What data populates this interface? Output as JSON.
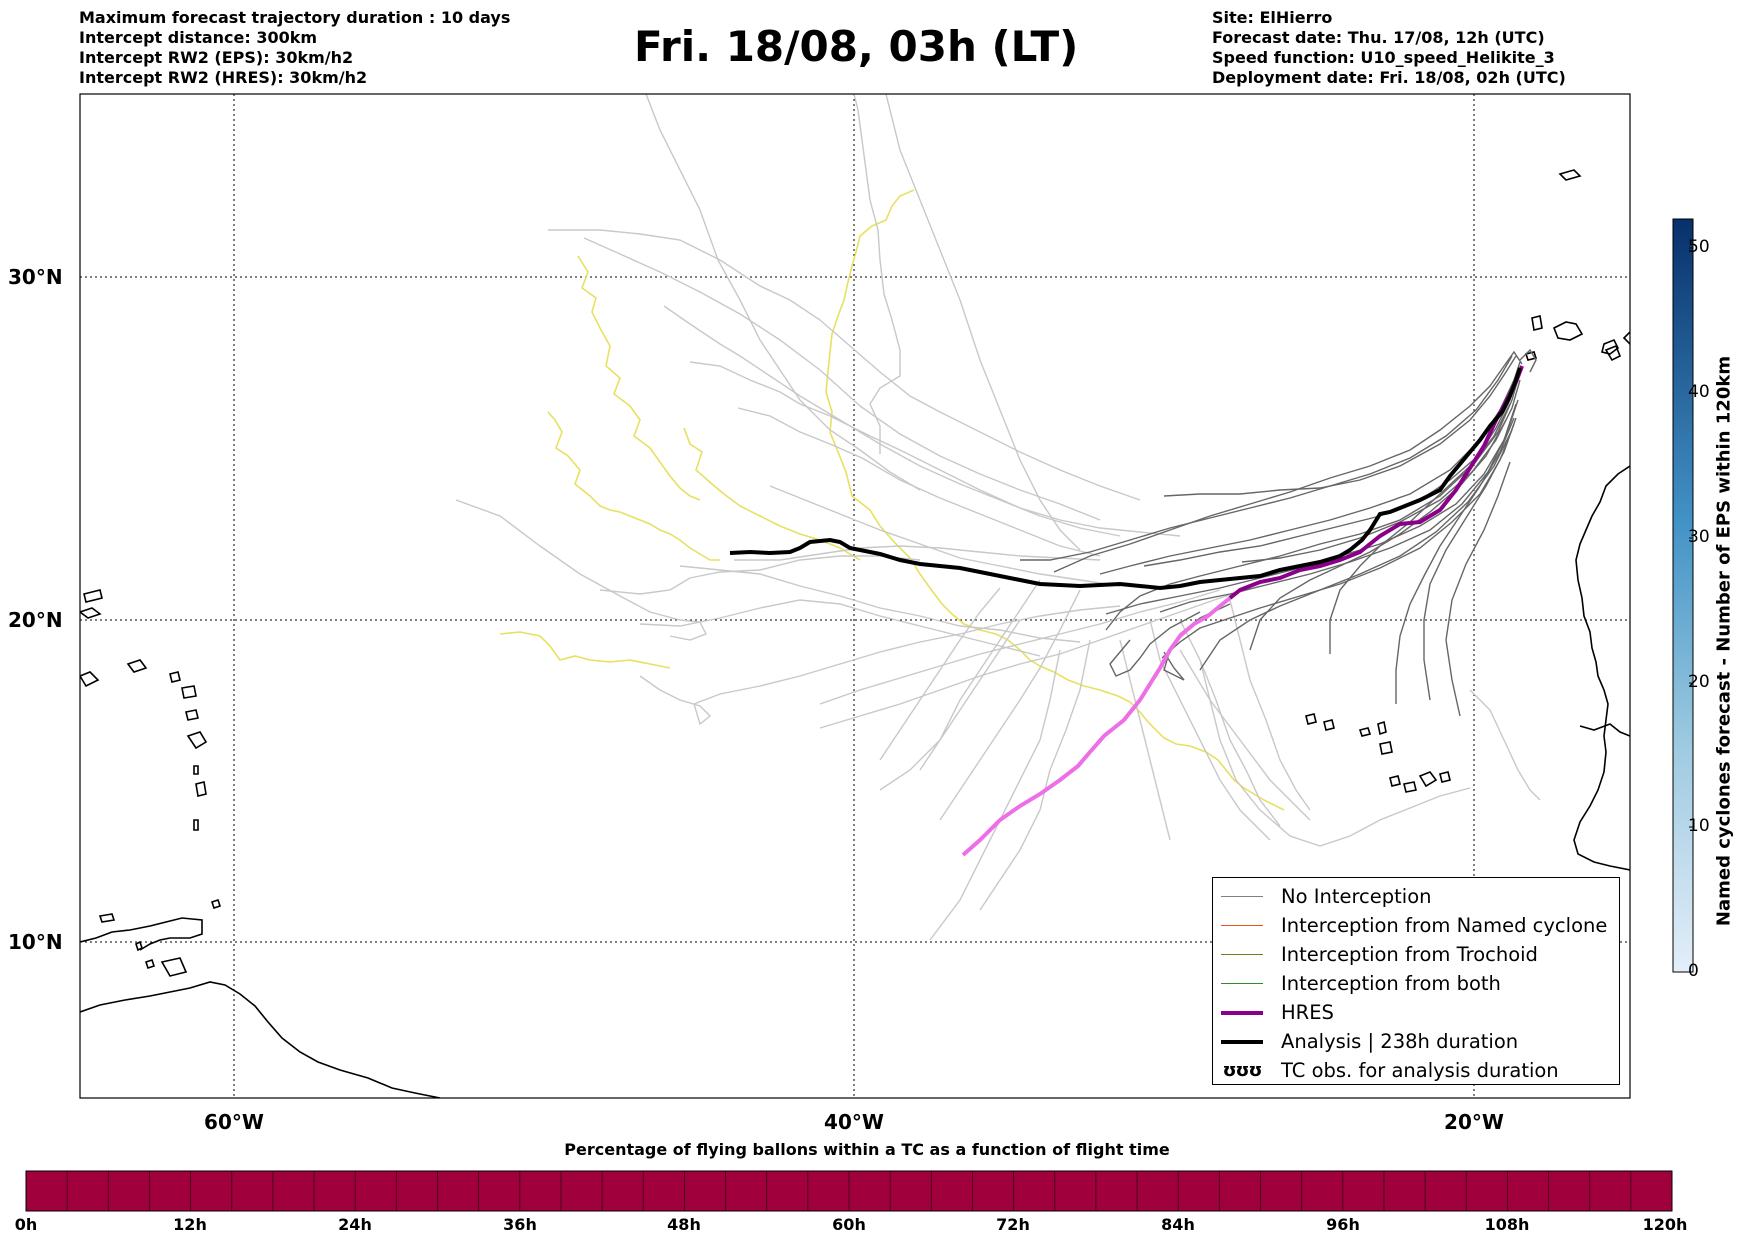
{
  "header": {
    "left": [
      "Maximum forecast trajectory duration : 10 days",
      "Intercept distance: 300km",
      "Intercept RW2 (EPS):  30km/h2",
      "Intercept RW2 (HRES): 30km/h2"
    ],
    "title": "Fri. 18/08, 03h (LT)",
    "right": [
      "Site: ElHierro",
      "Forecast date: Thu. 17/08, 12h (UTC)",
      "Speed function: U10_speed_Helikite_3",
      "Deployment date: Fri. 18/08, 02h (UTC)"
    ]
  },
  "map": {
    "lat_labels": [
      "30°N",
      "20°N",
      "10°N"
    ],
    "lon_labels": [
      "60°W",
      "40°W",
      "20°W"
    ],
    "lon_range": [
      -65,
      -15
    ],
    "lat_range": [
      5.3,
      34.6
    ],
    "grid": "dotted"
  },
  "legend": {
    "items": [
      {
        "label": "No Interception",
        "color": "#808080",
        "kind": "line-thin"
      },
      {
        "label": "Interception from Named cyclone",
        "color": "#e8541a",
        "kind": "line-thin"
      },
      {
        "label": "Interception from Trochoid",
        "color": "#7a7a1f",
        "kind": "line-thin"
      },
      {
        "label": "Interception from both",
        "color": "#2e8b2e",
        "kind": "line-thin"
      },
      {
        "label": "HRES",
        "color": "#8b008b",
        "kind": "line-thick"
      },
      {
        "label": "Analysis | 238h duration",
        "color": "#000000",
        "kind": "line-thick"
      },
      {
        "label": "TC obs. for analysis duration",
        "color": "#000000",
        "kind": "glyph",
        "glyph": "ʊʊʊ"
      }
    ]
  },
  "colorbar_right": {
    "title": "Named cyclones forecast - Number of EPS within 120km",
    "ticks": [
      "0",
      "10",
      "20",
      "30",
      "40",
      "50"
    ],
    "max": 52,
    "colors": [
      "#e3eef9",
      "#08306b"
    ]
  },
  "colorbar_bottom": {
    "title": "Percentage of flying ballons within a TC as a function of flight time",
    "ticks": [
      "0h",
      "12h",
      "24h",
      "36h",
      "48h",
      "60h",
      "72h",
      "84h",
      "96h",
      "108h",
      "120h"
    ],
    "color": "#a0003c"
  },
  "tracks": {
    "analysis_color": "#000000",
    "hres_color": "#8b008b",
    "hres_tail_color": "#ee6ee6",
    "eps_near_color": "#666666",
    "eps_far_color": "#c8c8c8",
    "trochoid_color": "#e8e060"
  }
}
